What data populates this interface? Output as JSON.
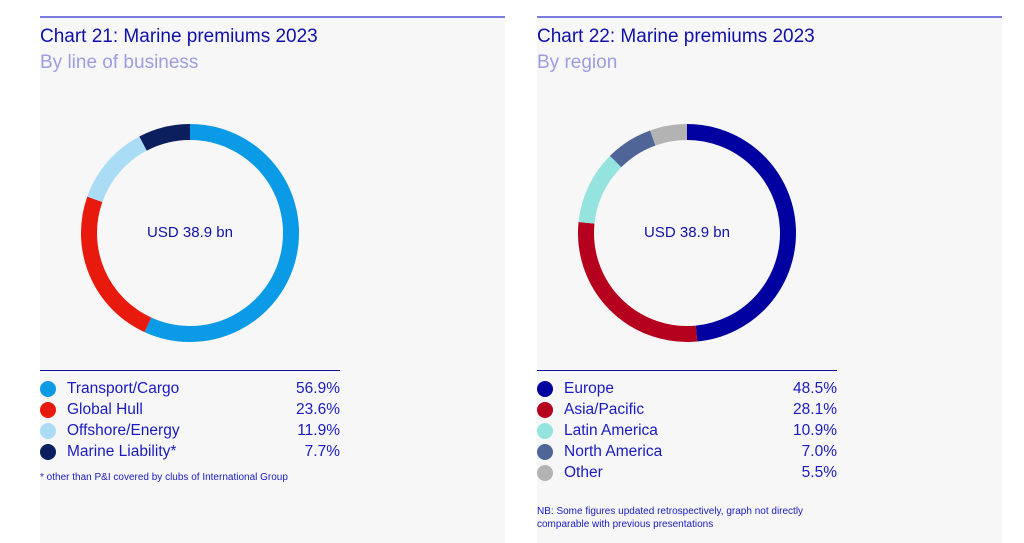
{
  "chart_data": [
    {
      "type": "pie",
      "title": "Chart 21: Marine premiums 2023",
      "subtitle": "By line of business",
      "center_label": "USD 38.9 bn",
      "categories": [
        "Transport/Cargo",
        "Global Hull",
        "Offshore/Energy",
        "Marine Liability*"
      ],
      "values": [
        56.9,
        23.6,
        11.9,
        7.7
      ],
      "value_labels": [
        "56.9%",
        "23.6%",
        "11.9%",
        "7.7%"
      ],
      "colors": [
        "#0b9ae6",
        "#e8190d",
        "#aadcf6",
        "#0b1f5e"
      ],
      "footnote": "* other than P&I covered by clubs of International Group"
    },
    {
      "type": "pie",
      "title": "Chart 22: Marine premiums 2023",
      "subtitle": "By region",
      "center_label": "USD 38.9 bn",
      "categories": [
        "Europe",
        "Asia/Pacific",
        "Latin America",
        "North America",
        "Other"
      ],
      "values": [
        48.5,
        28.1,
        10.9,
        7.0,
        5.5
      ],
      "value_labels": [
        "48.5%",
        "28.1%",
        "10.9%",
        "7.0%",
        "5.5%"
      ],
      "colors": [
        "#0000a0",
        "#b5001e",
        "#95e3de",
        "#4f6497",
        "#b3b3b3"
      ],
      "footnote": "NB: Some figures updated retrospectively, graph not directly comparable with previous presentations"
    }
  ]
}
